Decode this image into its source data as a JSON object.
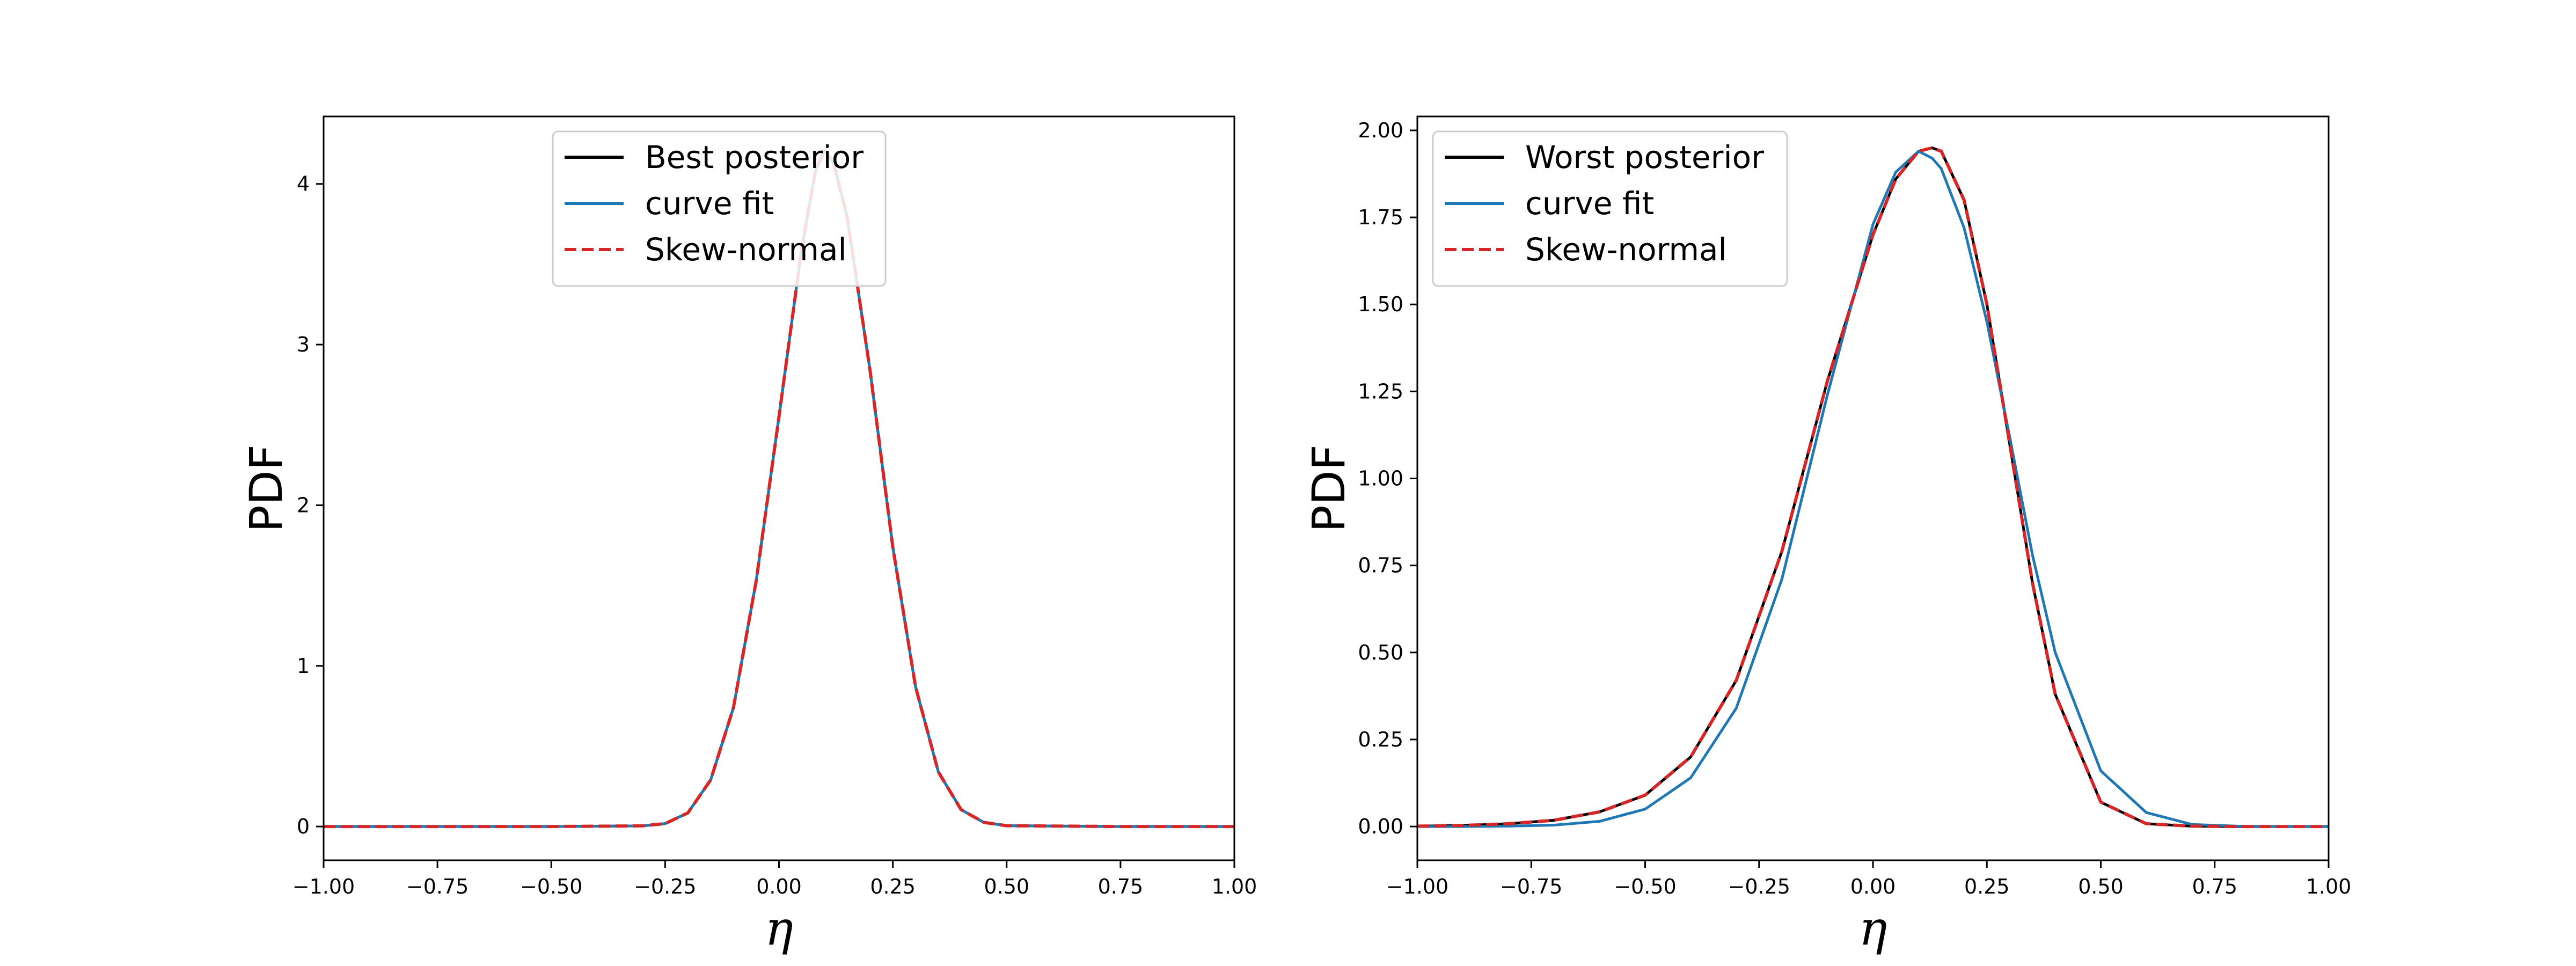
{
  "chart_data": [
    {
      "type": "line",
      "xlabel": "η",
      "ylabel": "PDF",
      "xlim": [
        -1.0,
        1.0
      ],
      "ylim": [
        -0.21,
        4.42
      ],
      "x_ticks": [
        -1.0,
        -0.75,
        -0.5,
        -0.25,
        0.0,
        0.25,
        0.5,
        0.75,
        1.0
      ],
      "x_tick_labels": [
        "−1.00",
        "−0.75",
        "−0.50",
        "−0.25",
        "0.00",
        "0.25",
        "0.50",
        "0.75",
        "1.00"
      ],
      "y_ticks": [
        0,
        1,
        2,
        3,
        4
      ],
      "y_tick_labels": [
        "0",
        "1",
        "2",
        "3",
        "4"
      ],
      "grid": false,
      "legend_position": "top-right",
      "series": [
        {
          "name": "Best posterior",
          "color": "#000000",
          "style": "solid",
          "x": [
            -1.0,
            -0.5,
            -0.3,
            -0.25,
            -0.2,
            -0.15,
            -0.1,
            -0.05,
            0.0,
            0.05,
            0.08,
            0.1,
            0.12,
            0.15,
            0.2,
            0.25,
            0.3,
            0.35,
            0.4,
            0.45,
            0.5,
            0.75,
            1.0
          ],
          "values": [
            0.0,
            0.0,
            0.004,
            0.018,
            0.085,
            0.29,
            0.74,
            1.53,
            2.55,
            3.6,
            4.08,
            4.21,
            4.13,
            3.79,
            2.84,
            1.74,
            0.87,
            0.34,
            0.105,
            0.026,
            0.005,
            0.0,
            0.0
          ]
        },
        {
          "name": "curve fit",
          "color": "#1f77b4",
          "style": "solid",
          "x": [
            -1.0,
            -0.5,
            -0.3,
            -0.25,
            -0.2,
            -0.15,
            -0.1,
            -0.05,
            0.0,
            0.05,
            0.08,
            0.1,
            0.12,
            0.15,
            0.2,
            0.25,
            0.3,
            0.35,
            0.4,
            0.45,
            0.5,
            0.75,
            1.0
          ],
          "values": [
            0.0,
            0.0,
            0.004,
            0.018,
            0.085,
            0.29,
            0.74,
            1.53,
            2.55,
            3.6,
            4.08,
            4.21,
            4.13,
            3.79,
            2.84,
            1.74,
            0.87,
            0.34,
            0.105,
            0.026,
            0.005,
            0.0,
            0.0
          ]
        },
        {
          "name": "Skew-normal",
          "color": "#d62728",
          "style": "dashed",
          "x": [
            -1.0,
            -0.5,
            -0.3,
            -0.25,
            -0.2,
            -0.15,
            -0.1,
            -0.05,
            0.0,
            0.05,
            0.08,
            0.1,
            0.12,
            0.15,
            0.2,
            0.25,
            0.3,
            0.35,
            0.4,
            0.45,
            0.5,
            0.75,
            1.0
          ],
          "values": [
            0.0,
            0.0,
            0.004,
            0.018,
            0.085,
            0.29,
            0.74,
            1.53,
            2.55,
            3.6,
            4.08,
            4.21,
            4.13,
            3.79,
            2.84,
            1.74,
            0.87,
            0.34,
            0.105,
            0.026,
            0.005,
            0.0,
            0.0
          ]
        }
      ]
    },
    {
      "type": "line",
      "xlabel": "η",
      "ylabel": "PDF",
      "xlim": [
        -1.0,
        1.0
      ],
      "ylim": [
        -0.097,
        2.04
      ],
      "x_ticks": [
        -1.0,
        -0.75,
        -0.5,
        -0.25,
        0.0,
        0.25,
        0.5,
        0.75,
        1.0
      ],
      "x_tick_labels": [
        "−1.00",
        "−0.75",
        "−0.50",
        "−0.25",
        "0.00",
        "0.25",
        "0.50",
        "0.75",
        "1.00"
      ],
      "y_ticks": [
        0.0,
        0.25,
        0.5,
        0.75,
        1.0,
        1.25,
        1.5,
        1.75,
        2.0
      ],
      "y_tick_labels": [
        "0.00",
        "0.25",
        "0.50",
        "0.75",
        "1.00",
        "1.25",
        "1.50",
        "1.75",
        "2.00"
      ],
      "grid": false,
      "legend_position": "top-left",
      "series": [
        {
          "name": "Worst posterior",
          "color": "#000000",
          "style": "solid",
          "x": [
            -1.0,
            -0.9,
            -0.8,
            -0.7,
            -0.6,
            -0.5,
            -0.4,
            -0.3,
            -0.2,
            -0.1,
            0.0,
            0.05,
            0.1,
            0.13,
            0.15,
            0.2,
            0.25,
            0.3,
            0.35,
            0.4,
            0.5,
            0.6,
            0.7,
            0.8,
            0.9,
            1.0
          ],
          "values": [
            0.001,
            0.003,
            0.008,
            0.018,
            0.042,
            0.09,
            0.2,
            0.42,
            0.79,
            1.28,
            1.7,
            1.86,
            1.94,
            1.95,
            1.94,
            1.8,
            1.5,
            1.1,
            0.7,
            0.38,
            0.07,
            0.008,
            0.001,
            0.0,
            0.0,
            0.0
          ]
        },
        {
          "name": "curve fit",
          "color": "#1f77b4",
          "style": "solid",
          "x": [
            -1.0,
            -0.9,
            -0.8,
            -0.7,
            -0.6,
            -0.5,
            -0.4,
            -0.3,
            -0.2,
            -0.1,
            0.0,
            0.05,
            0.1,
            0.13,
            0.15,
            0.2,
            0.25,
            0.3,
            0.35,
            0.4,
            0.5,
            0.6,
            0.7,
            0.8,
            0.9,
            1.0
          ],
          "values": [
            0.0,
            0.0,
            0.001,
            0.004,
            0.015,
            0.05,
            0.14,
            0.34,
            0.71,
            1.24,
            1.73,
            1.88,
            1.94,
            1.92,
            1.89,
            1.72,
            1.45,
            1.12,
            0.78,
            0.5,
            0.16,
            0.04,
            0.006,
            0.001,
            0.0,
            0.0
          ]
        },
        {
          "name": "Skew-normal",
          "color": "#d62728",
          "style": "dashed",
          "x": [
            -1.0,
            -0.9,
            -0.8,
            -0.7,
            -0.6,
            -0.5,
            -0.4,
            -0.3,
            -0.2,
            -0.1,
            0.0,
            0.05,
            0.1,
            0.13,
            0.15,
            0.2,
            0.25,
            0.3,
            0.35,
            0.4,
            0.5,
            0.6,
            0.7,
            0.8,
            0.9,
            1.0
          ],
          "values": [
            0.001,
            0.003,
            0.008,
            0.018,
            0.042,
            0.09,
            0.2,
            0.42,
            0.79,
            1.28,
            1.7,
            1.86,
            1.94,
            1.95,
            1.94,
            1.8,
            1.5,
            1.1,
            0.7,
            0.38,
            0.07,
            0.008,
            0.001,
            0.0,
            0.0,
            0.0
          ]
        }
      ]
    }
  ]
}
